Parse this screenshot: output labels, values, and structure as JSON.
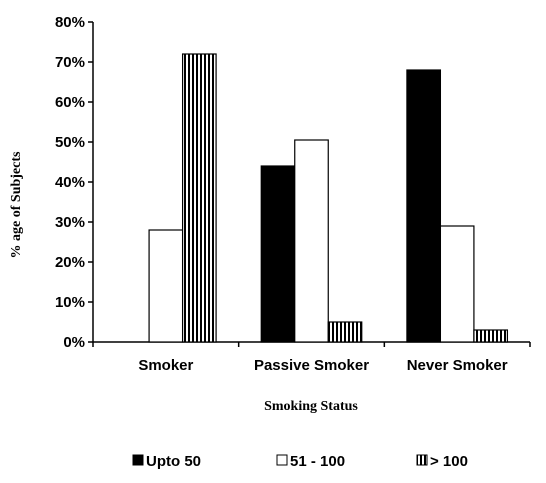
{
  "chart_data": {
    "type": "bar",
    "categories": [
      "Smoker",
      "Passive Smoker",
      "Never Smoker"
    ],
    "series": [
      {
        "name": "Upto 50",
        "values": [
          0,
          44,
          68
        ],
        "fill": "solid"
      },
      {
        "name": "51 - 100",
        "values": [
          28,
          50.5,
          29
        ],
        "fill": "white"
      },
      {
        "name": "> 100",
        "values": [
          72,
          5,
          3
        ],
        "fill": "vertical-stripes"
      }
    ],
    "title": "",
    "xlabel": "Smoking Status",
    "ylabel": "% age of Subjects",
    "ylim": [
      0,
      80
    ],
    "y_ticks": [
      0,
      10,
      20,
      30,
      40,
      50,
      60,
      70,
      80
    ],
    "y_tick_labels": [
      "0%",
      "10%",
      "20%",
      "30%",
      "40%",
      "50%",
      "60%",
      "70%",
      "80%"
    ],
    "grid": false,
    "legend_placement": "bottom",
    "colors": {
      "bar": "#000000",
      "background": "#ffffff"
    }
  }
}
